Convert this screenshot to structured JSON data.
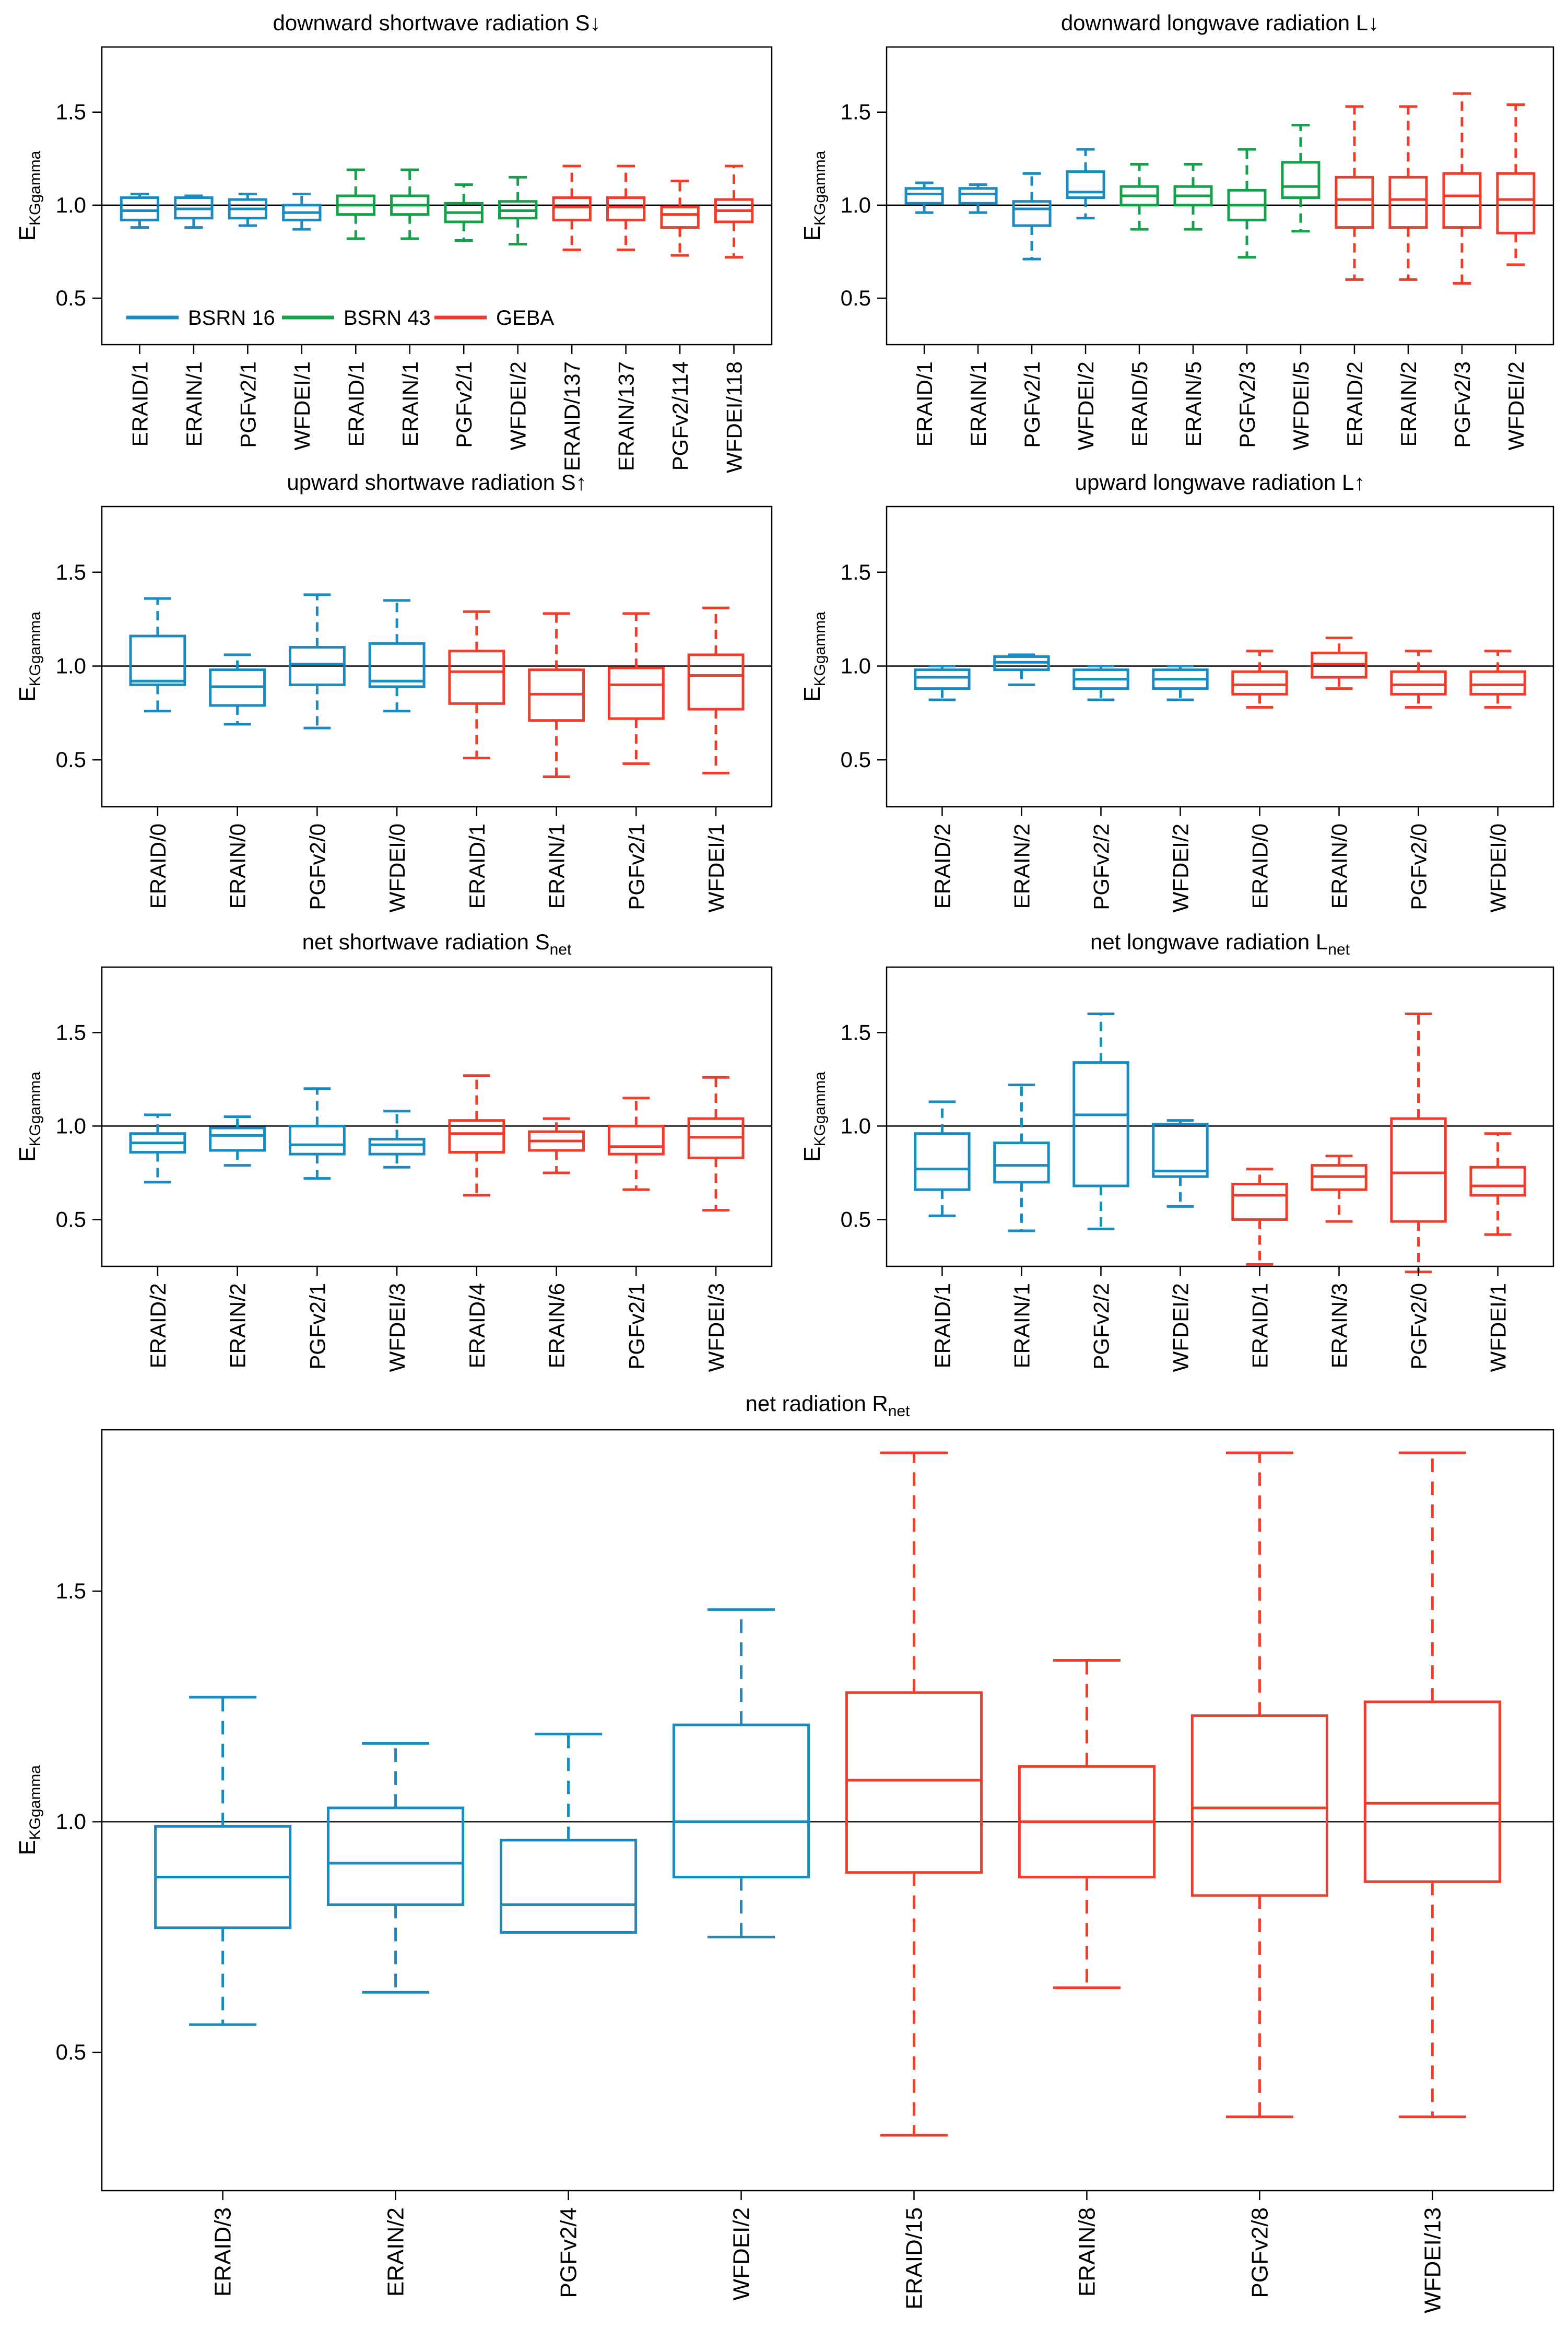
{
  "colors": {
    "BSRN 16": "#1a8bc0",
    "BSRN 43": "#13a24a",
    "GEBA": "#f03c2a"
  },
  "ylabel": {
    "main": "E",
    "sub": "KGgamma"
  },
  "legend": [
    {
      "label": "BSRN 16",
      "group": "BSRN 16"
    },
    {
      "label": "BSRN 43",
      "group": "BSRN 43"
    },
    {
      "label": "GEBA",
      "group": "GEBA"
    }
  ],
  "chart_data": [
    {
      "type": "box",
      "title": {
        "main": "downward shortwave radiation S↓",
        "sub": ""
      },
      "ylim": [
        0.25,
        1.85
      ],
      "yticks": [
        0.5,
        1.0,
        1.5
      ],
      "yticklabels": [
        "0.5",
        "1.0",
        "1.5"
      ],
      "hline": 1.0,
      "show_legend": true,
      "boxes": [
        {
          "label": "ERAID/1",
          "group": "BSRN 16",
          "wlo": 0.88,
          "q1": 0.92,
          "med": 0.97,
          "q3": 1.04,
          "whi": 1.06
        },
        {
          "label": "ERAIN/1",
          "group": "BSRN 16",
          "wlo": 0.88,
          "q1": 0.93,
          "med": 0.98,
          "q3": 1.04,
          "whi": 1.05
        },
        {
          "label": "PGFv2/1",
          "group": "BSRN 16",
          "wlo": 0.89,
          "q1": 0.93,
          "med": 0.98,
          "q3": 1.03,
          "whi": 1.06
        },
        {
          "label": "WFDEI/1",
          "group": "BSRN 16",
          "wlo": 0.87,
          "q1": 0.92,
          "med": 0.96,
          "q3": 1.0,
          "whi": 1.06
        },
        {
          "label": "ERAID/1",
          "group": "BSRN 43",
          "wlo": 0.82,
          "q1": 0.95,
          "med": 1.0,
          "q3": 1.05,
          "whi": 1.19
        },
        {
          "label": "ERAIN/1",
          "group": "BSRN 43",
          "wlo": 0.82,
          "q1": 0.95,
          "med": 1.0,
          "q3": 1.05,
          "whi": 1.19
        },
        {
          "label": "PGFv2/1",
          "group": "BSRN 43",
          "wlo": 0.81,
          "q1": 0.91,
          "med": 0.96,
          "q3": 1.01,
          "whi": 1.11
        },
        {
          "label": "WFDEI/2",
          "group": "BSRN 43",
          "wlo": 0.79,
          "q1": 0.93,
          "med": 0.97,
          "q3": 1.02,
          "whi": 1.15
        },
        {
          "label": "ERAID/137",
          "group": "GEBA",
          "wlo": 0.76,
          "q1": 0.92,
          "med": 0.99,
          "q3": 1.04,
          "whi": 1.21
        },
        {
          "label": "ERAIN/137",
          "group": "GEBA",
          "wlo": 0.76,
          "q1": 0.92,
          "med": 0.99,
          "q3": 1.04,
          "whi": 1.21
        },
        {
          "label": "PGFv2/114",
          "group": "GEBA",
          "wlo": 0.73,
          "q1": 0.88,
          "med": 0.95,
          "q3": 0.99,
          "whi": 1.13
        },
        {
          "label": "WFDEI/118",
          "group": "GEBA",
          "wlo": 0.72,
          "q1": 0.91,
          "med": 0.97,
          "q3": 1.03,
          "whi": 1.21
        }
      ]
    },
    {
      "type": "box",
      "title": {
        "main": "downward longwave radiation L↓",
        "sub": ""
      },
      "ylim": [
        0.25,
        1.85
      ],
      "yticks": [
        0.5,
        1.0,
        1.5
      ],
      "yticklabels": [
        "0.5",
        "1.0",
        "1.5"
      ],
      "hline": 1.0,
      "show_legend": false,
      "boxes": [
        {
          "label": "ERAID/1",
          "group": "BSRN 16",
          "wlo": 0.96,
          "q1": 1.01,
          "med": 1.06,
          "q3": 1.09,
          "whi": 1.12
        },
        {
          "label": "ERAIN/1",
          "group": "BSRN 16",
          "wlo": 0.96,
          "q1": 1.01,
          "med": 1.06,
          "q3": 1.09,
          "whi": 1.11
        },
        {
          "label": "PGFv2/1",
          "group": "BSRN 16",
          "wlo": 0.71,
          "q1": 0.89,
          "med": 0.98,
          "q3": 1.02,
          "whi": 1.17
        },
        {
          "label": "WFDEI/2",
          "group": "BSRN 16",
          "wlo": 0.93,
          "q1": 1.04,
          "med": 1.07,
          "q3": 1.18,
          "whi": 1.3
        },
        {
          "label": "ERAID/5",
          "group": "BSRN 43",
          "wlo": 0.87,
          "q1": 1.0,
          "med": 1.05,
          "q3": 1.1,
          "whi": 1.22
        },
        {
          "label": "ERAIN/5",
          "group": "BSRN 43",
          "wlo": 0.87,
          "q1": 1.0,
          "med": 1.05,
          "q3": 1.1,
          "whi": 1.22
        },
        {
          "label": "PGFv2/3",
          "group": "BSRN 43",
          "wlo": 0.72,
          "q1": 0.92,
          "med": 1.0,
          "q3": 1.08,
          "whi": 1.3
        },
        {
          "label": "WFDEI/5",
          "group": "BSRN 43",
          "wlo": 0.86,
          "q1": 1.04,
          "med": 1.1,
          "q3": 1.23,
          "whi": 1.43
        },
        {
          "label": "ERAID/2",
          "group": "GEBA",
          "wlo": 0.6,
          "q1": 0.88,
          "med": 1.03,
          "q3": 1.15,
          "whi": 1.53
        },
        {
          "label": "ERAIN/2",
          "group": "GEBA",
          "wlo": 0.6,
          "q1": 0.88,
          "med": 1.03,
          "q3": 1.15,
          "whi": 1.53
        },
        {
          "label": "PGFv2/3",
          "group": "GEBA",
          "wlo": 0.58,
          "q1": 0.88,
          "med": 1.05,
          "q3": 1.17,
          "whi": 1.6
        },
        {
          "label": "WFDEI/2",
          "group": "GEBA",
          "wlo": 0.68,
          "q1": 0.85,
          "med": 1.03,
          "q3": 1.17,
          "whi": 1.54
        }
      ]
    },
    {
      "type": "box",
      "title": {
        "main": "upward shortwave radiation S↑",
        "sub": ""
      },
      "ylim": [
        0.25,
        1.85
      ],
      "yticks": [
        0.5,
        1.0,
        1.5
      ],
      "yticklabels": [
        "0.5",
        "1.0",
        "1.5"
      ],
      "hline": 1.0,
      "show_legend": false,
      "boxes": [
        {
          "label": "ERAID/0",
          "group": "BSRN 16",
          "wlo": 0.76,
          "q1": 0.9,
          "med": 0.92,
          "q3": 1.16,
          "whi": 1.36
        },
        {
          "label": "ERAIN/0",
          "group": "BSRN 16",
          "wlo": 0.69,
          "q1": 0.79,
          "med": 0.89,
          "q3": 0.98,
          "whi": 1.06
        },
        {
          "label": "PGFv2/0",
          "group": "BSRN 16",
          "wlo": 0.67,
          "q1": 0.9,
          "med": 1.01,
          "q3": 1.1,
          "whi": 1.38
        },
        {
          "label": "WFDEI/0",
          "group": "BSRN 16",
          "wlo": 0.76,
          "q1": 0.89,
          "med": 0.92,
          "q3": 1.12,
          "whi": 1.35
        },
        {
          "label": "ERAID/1",
          "group": "GEBA",
          "wlo": 0.51,
          "q1": 0.8,
          "med": 0.97,
          "q3": 1.08,
          "whi": 1.29
        },
        {
          "label": "ERAIN/1",
          "group": "GEBA",
          "wlo": 0.41,
          "q1": 0.71,
          "med": 0.85,
          "q3": 0.98,
          "whi": 1.28
        },
        {
          "label": "PGFv2/1",
          "group": "GEBA",
          "wlo": 0.48,
          "q1": 0.72,
          "med": 0.9,
          "q3": 0.99,
          "whi": 1.28
        },
        {
          "label": "WFDEI/1",
          "group": "GEBA",
          "wlo": 0.43,
          "q1": 0.77,
          "med": 0.95,
          "q3": 1.06,
          "whi": 1.31
        }
      ]
    },
    {
      "type": "box",
      "title": {
        "main": "upward longwave radiation L↑",
        "sub": ""
      },
      "ylim": [
        0.25,
        1.85
      ],
      "yticks": [
        0.5,
        1.0,
        1.5
      ],
      "yticklabels": [
        "0.5",
        "1.0",
        "1.5"
      ],
      "hline": 1.0,
      "show_legend": false,
      "boxes": [
        {
          "label": "ERAID/2",
          "group": "BSRN 16",
          "wlo": 0.82,
          "q1": 0.88,
          "med": 0.94,
          "q3": 0.98,
          "whi": 1.0
        },
        {
          "label": "ERAIN/2",
          "group": "BSRN 16",
          "wlo": 0.9,
          "q1": 0.98,
          "med": 1.02,
          "q3": 1.05,
          "whi": 1.06
        },
        {
          "label": "PGFv2/2",
          "group": "BSRN 16",
          "wlo": 0.82,
          "q1": 0.88,
          "med": 0.93,
          "q3": 0.98,
          "whi": 1.0
        },
        {
          "label": "WFDEI/2",
          "group": "BSRN 16",
          "wlo": 0.82,
          "q1": 0.88,
          "med": 0.93,
          "q3": 0.98,
          "whi": 1.0
        },
        {
          "label": "ERAID/0",
          "group": "GEBA",
          "wlo": 0.78,
          "q1": 0.85,
          "med": 0.9,
          "q3": 0.97,
          "whi": 1.08
        },
        {
          "label": "ERAIN/0",
          "group": "GEBA",
          "wlo": 0.88,
          "q1": 0.94,
          "med": 1.01,
          "q3": 1.07,
          "whi": 1.15
        },
        {
          "label": "PGFv2/0",
          "group": "GEBA",
          "wlo": 0.78,
          "q1": 0.85,
          "med": 0.9,
          "q3": 0.97,
          "whi": 1.08
        },
        {
          "label": "WFDEI/0",
          "group": "GEBA",
          "wlo": 0.78,
          "q1": 0.85,
          "med": 0.9,
          "q3": 0.97,
          "whi": 1.08
        }
      ]
    },
    {
      "type": "box",
      "title": {
        "main": "net shortwave radiation S",
        "sub": "net"
      },
      "ylim": [
        0.25,
        1.85
      ],
      "yticks": [
        0.5,
        1.0,
        1.5
      ],
      "yticklabels": [
        "0.5",
        "1.0",
        "1.5"
      ],
      "hline": 1.0,
      "show_legend": false,
      "boxes": [
        {
          "label": "ERAID/2",
          "group": "BSRN 16",
          "wlo": 0.7,
          "q1": 0.86,
          "med": 0.91,
          "q3": 0.96,
          "whi": 1.06
        },
        {
          "label": "ERAIN/2",
          "group": "BSRN 16",
          "wlo": 0.79,
          "q1": 0.87,
          "med": 0.95,
          "q3": 0.99,
          "whi": 1.05
        },
        {
          "label": "PGFv2/1",
          "group": "BSRN 16",
          "wlo": 0.72,
          "q1": 0.85,
          "med": 0.9,
          "q3": 1.0,
          "whi": 1.2
        },
        {
          "label": "WFDEI/3",
          "group": "BSRN 16",
          "wlo": 0.78,
          "q1": 0.85,
          "med": 0.9,
          "q3": 0.93,
          "whi": 1.08
        },
        {
          "label": "ERAID/4",
          "group": "GEBA",
          "wlo": 0.63,
          "q1": 0.86,
          "med": 0.96,
          "q3": 1.03,
          "whi": 1.27
        },
        {
          "label": "ERAIN/6",
          "group": "GEBA",
          "wlo": 0.75,
          "q1": 0.87,
          "med": 0.92,
          "q3": 0.97,
          "whi": 1.04
        },
        {
          "label": "PGFv2/1",
          "group": "GEBA",
          "wlo": 0.66,
          "q1": 0.85,
          "med": 0.89,
          "q3": 1.0,
          "whi": 1.15
        },
        {
          "label": "WFDEI/3",
          "group": "GEBA",
          "wlo": 0.55,
          "q1": 0.83,
          "med": 0.94,
          "q3": 1.04,
          "whi": 1.26
        }
      ]
    },
    {
      "type": "box",
      "title": {
        "main": "net longwave radiation L",
        "sub": "net"
      },
      "ylim": [
        0.25,
        1.85
      ],
      "yticks": [
        0.5,
        1.0,
        1.5
      ],
      "yticklabels": [
        "0.5",
        "1.0",
        "1.5"
      ],
      "hline": 1.0,
      "show_legend": false,
      "boxes": [
        {
          "label": "ERAID/1",
          "group": "BSRN 16",
          "wlo": 0.52,
          "q1": 0.66,
          "med": 0.77,
          "q3": 0.96,
          "whi": 1.13
        },
        {
          "label": "ERAIN/1",
          "group": "BSRN 16",
          "wlo": 0.44,
          "q1": 0.7,
          "med": 0.79,
          "q3": 0.91,
          "whi": 1.22
        },
        {
          "label": "PGFv2/2",
          "group": "BSRN 16",
          "wlo": 0.45,
          "q1": 0.68,
          "med": 1.06,
          "q3": 1.34,
          "whi": 1.6
        },
        {
          "label": "WFDEI/2",
          "group": "BSRN 16",
          "wlo": 0.57,
          "q1": 0.73,
          "med": 0.76,
          "q3": 1.01,
          "whi": 1.03
        },
        {
          "label": "ERAID/1",
          "group": "GEBA",
          "wlo": 0.26,
          "q1": 0.5,
          "med": 0.63,
          "q3": 0.69,
          "whi": 0.77
        },
        {
          "label": "ERAIN/3",
          "group": "GEBA",
          "wlo": 0.49,
          "q1": 0.66,
          "med": 0.73,
          "q3": 0.79,
          "whi": 0.84
        },
        {
          "label": "PGFv2/0",
          "group": "GEBA",
          "wlo": 0.22,
          "q1": 0.49,
          "med": 0.75,
          "q3": 1.04,
          "whi": 1.6
        },
        {
          "label": "WFDEI/1",
          "group": "GEBA",
          "wlo": 0.42,
          "q1": 0.63,
          "med": 0.68,
          "q3": 0.78,
          "whi": 0.96
        }
      ]
    },
    {
      "type": "box",
      "title": {
        "main": "net radiation R",
        "sub": "net"
      },
      "ylim": [
        0.2,
        1.85
      ],
      "yticks": [
        0.5,
        1.0,
        1.5
      ],
      "yticklabels": [
        "0.5",
        "1.0",
        "1.5"
      ],
      "hline": 1.0,
      "show_legend": false,
      "boxes": [
        {
          "label": "ERAID/3",
          "group": "BSRN 16",
          "wlo": 0.56,
          "q1": 0.77,
          "med": 0.88,
          "q3": 0.99,
          "whi": 1.27
        },
        {
          "label": "ERAIN/2",
          "group": "BSRN 16",
          "wlo": 0.63,
          "q1": 0.82,
          "med": 0.91,
          "q3": 1.03,
          "whi": 1.17
        },
        {
          "label": "PGFv2/4",
          "group": "BSRN 16",
          "wlo": 0.76,
          "q1": 0.76,
          "med": 0.82,
          "q3": 0.96,
          "whi": 1.19
        },
        {
          "label": "WFDEI/2",
          "group": "BSRN 16",
          "wlo": 0.75,
          "q1": 0.88,
          "med": 1.0,
          "q3": 1.21,
          "whi": 1.46
        },
        {
          "label": "ERAID/15",
          "group": "GEBA",
          "wlo": 0.32,
          "q1": 0.89,
          "med": 1.09,
          "q3": 1.28,
          "whi": 1.8
        },
        {
          "label": "ERAIN/8",
          "group": "GEBA",
          "wlo": 0.64,
          "q1": 0.88,
          "med": 1.0,
          "q3": 1.12,
          "whi": 1.35
        },
        {
          "label": "PGFv2/8",
          "group": "GEBA",
          "wlo": 0.36,
          "q1": 0.84,
          "med": 1.03,
          "q3": 1.23,
          "whi": 1.8
        },
        {
          "label": "WFDEI/13",
          "group": "GEBA",
          "wlo": 0.36,
          "q1": 0.87,
          "med": 1.04,
          "q3": 1.26,
          "whi": 1.8
        }
      ]
    }
  ]
}
